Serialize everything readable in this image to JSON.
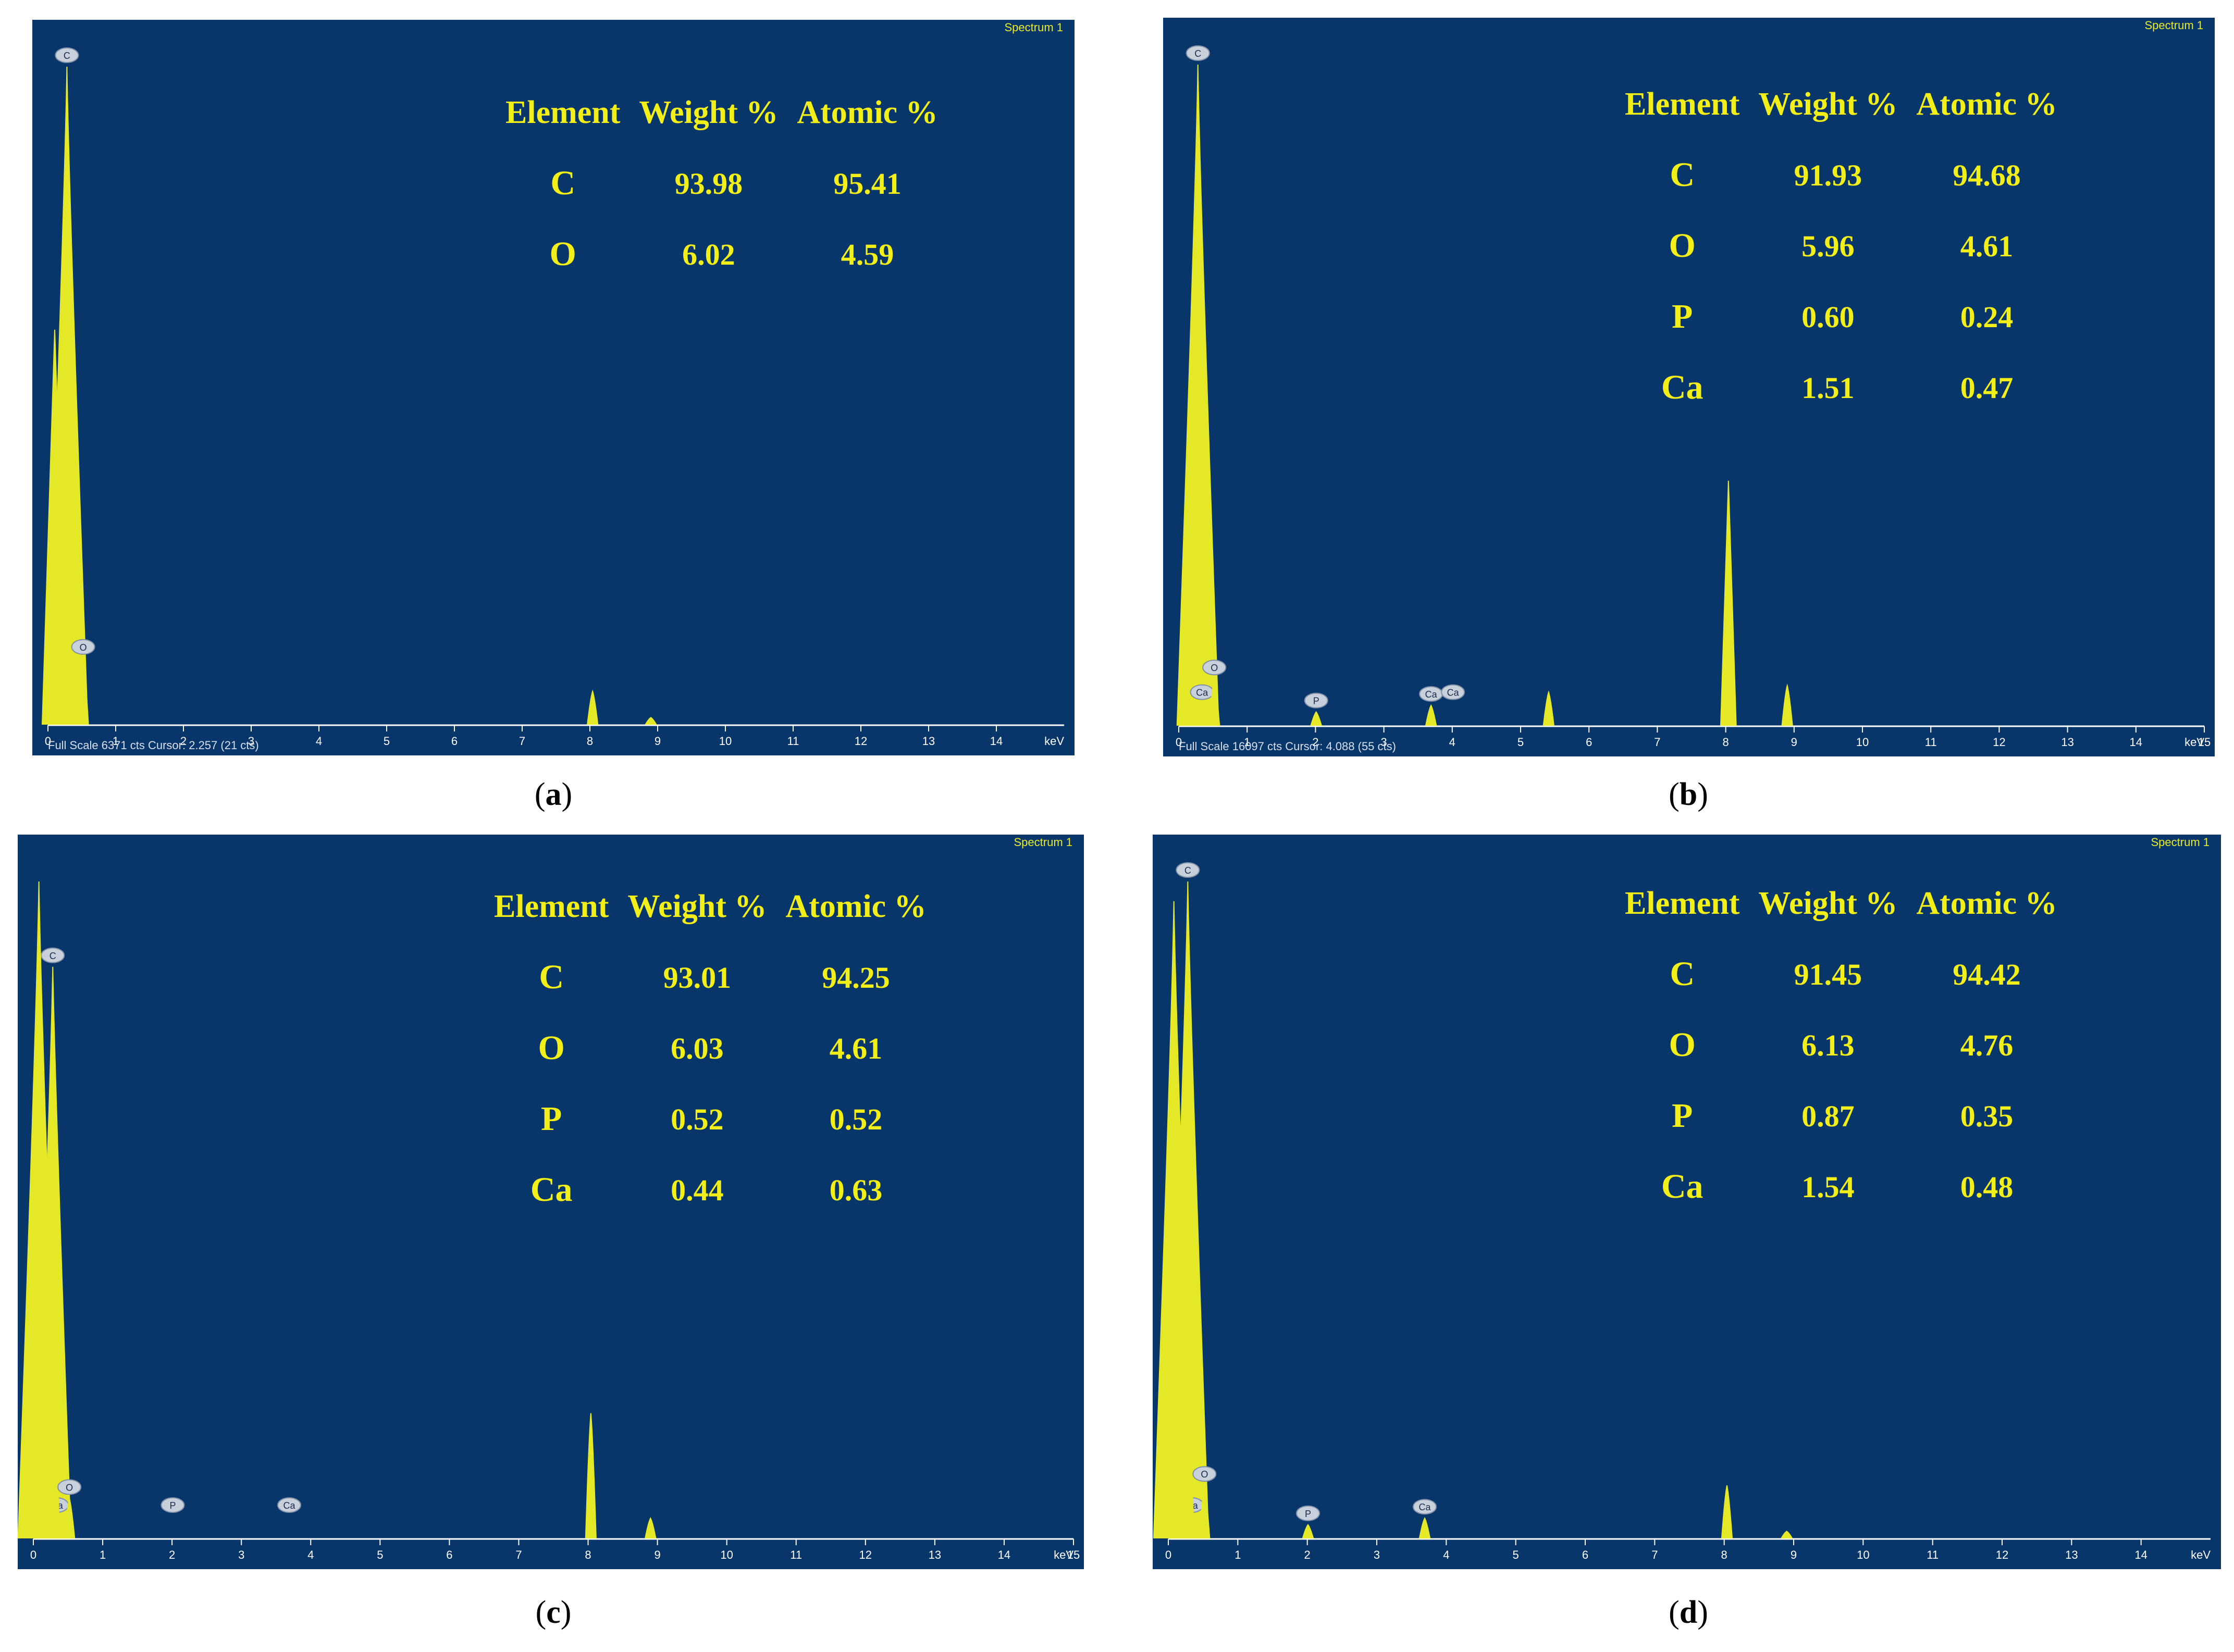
{
  "colors": {
    "plot_bg": "#08356a",
    "text": "#f2ee17",
    "spectrum": "#e4e826",
    "axis": "#ffffff"
  },
  "chart_data": [
    {
      "id": "a",
      "type": "table",
      "caption": "a",
      "spectrum_label": "Spectrum 1",
      "status_text": "Full Scale 6371 cts Cursor: 2.257  (21 cts)",
      "x_unit": "keV",
      "xlim": [
        0,
        15
      ],
      "x_ticks": [
        0,
        1,
        2,
        3,
        4,
        5,
        6,
        7,
        8,
        9,
        10,
        11,
        12,
        13,
        14
      ],
      "columns": [
        "Element",
        "Weight %",
        "Atomic %"
      ],
      "rows": [
        [
          "C",
          "93.98",
          "95.41"
        ],
        [
          "O",
          "6.02",
          "4.59"
        ]
      ],
      "peaks": [
        {
          "label": "C",
          "energy": 0.28,
          "height": 1.0
        },
        {
          "label": "",
          "energy": 0.1,
          "height": 0.6
        },
        {
          "label": "O",
          "energy": 0.52,
          "height": 0.1
        },
        {
          "label": "",
          "energy": 8.04,
          "height": 0.05
        },
        {
          "label": "",
          "energy": 8.9,
          "height": 0.01
        }
      ]
    },
    {
      "id": "b",
      "type": "table",
      "caption": "b",
      "spectrum_label": "Spectrum 1",
      "status_text": "Full Scale 16097 cts Cursor: 4.088  (55 cts)",
      "x_unit": "keV",
      "xlim": [
        0,
        15
      ],
      "x_ticks": [
        0,
        1,
        2,
        3,
        4,
        5,
        6,
        7,
        8,
        9,
        10,
        11,
        12,
        13,
        14,
        15
      ],
      "columns": [
        "Element",
        "Weight %",
        "Atomic %"
      ],
      "rows": [
        [
          "C",
          "91.93",
          "94.68"
        ],
        [
          "O",
          "5.96",
          "4.61"
        ],
        [
          "P",
          "0.60",
          "0.24"
        ],
        [
          "Ca",
          "1.51",
          "0.47"
        ]
      ],
      "peaks": [
        {
          "label": "C",
          "energy": 0.28,
          "height": 1.0
        },
        {
          "label": "Ca",
          "energy": 0.34,
          "height": 0.0
        },
        {
          "label": "",
          "energy": 0.08,
          "height": 0.27
        },
        {
          "label": "O",
          "energy": 0.52,
          "height": 0.07
        },
        {
          "label": "P",
          "energy": 2.01,
          "height": 0.02
        },
        {
          "label": "Ca",
          "energy": 3.69,
          "height": 0.03
        },
        {
          "label": "Ca",
          "energy": 4.01,
          "height": 0.0
        },
        {
          "label": "",
          "energy": 5.41,
          "height": 0.05
        },
        {
          "label": "",
          "energy": 8.04,
          "height": 0.37
        },
        {
          "label": "",
          "energy": 8.9,
          "height": 0.06
        }
      ]
    },
    {
      "id": "c",
      "type": "table",
      "caption": "c",
      "spectrum_label": "Spectrum 1",
      "status_text": "",
      "x_unit": "keV",
      "xlim": [
        0,
        15
      ],
      "x_ticks": [
        0,
        1,
        2,
        3,
        4,
        5,
        6,
        7,
        8,
        9,
        10,
        11,
        12,
        13,
        14,
        15
      ],
      "columns": [
        "Element",
        "Weight %",
        "Atomic %"
      ],
      "rows": [
        [
          "C",
          "93.01",
          "94.25"
        ],
        [
          "O",
          "6.03",
          "4.61"
        ],
        [
          "P",
          "0.52",
          "0.52"
        ],
        [
          "Ca",
          "0.44",
          "0.63"
        ]
      ],
      "peaks": [
        {
          "label": "C",
          "energy": 0.28,
          "height": 0.87
        },
        {
          "label": "Ca",
          "energy": 0.34,
          "height": 0.0
        },
        {
          "label": "",
          "energy": 0.08,
          "height": 1.0
        },
        {
          "label": "O",
          "energy": 0.52,
          "height": 0.06
        },
        {
          "label": "P",
          "energy": 2.01,
          "height": 0.0
        },
        {
          "label": "Ca",
          "energy": 3.69,
          "height": 0.0
        },
        {
          "label": "",
          "energy": 8.04,
          "height": 0.19
        },
        {
          "label": "",
          "energy": 8.9,
          "height": 0.03
        }
      ]
    },
    {
      "id": "d",
      "type": "table",
      "caption": "d",
      "spectrum_label": "Spectrum 1",
      "status_text": "",
      "x_unit": "keV",
      "xlim": [
        0,
        15
      ],
      "x_ticks": [
        0,
        1,
        2,
        3,
        4,
        5,
        6,
        7,
        8,
        9,
        10,
        11,
        12,
        13,
        14
      ],
      "columns": [
        "Element",
        "Weight %",
        "Atomic %"
      ],
      "rows": [
        [
          "C",
          "91.45",
          "94.42"
        ],
        [
          "O",
          "6.13",
          "4.76"
        ],
        [
          "P",
          "0.87",
          "0.35"
        ],
        [
          "Ca",
          "1.54",
          "0.48"
        ]
      ],
      "peaks": [
        {
          "label": "C",
          "energy": 0.28,
          "height": 1.0
        },
        {
          "label": "Ca",
          "energy": 0.34,
          "height": 0.0
        },
        {
          "label": "",
          "energy": 0.08,
          "height": 0.97
        },
        {
          "label": "O",
          "energy": 0.52,
          "height": 0.08
        },
        {
          "label": "P",
          "energy": 2.01,
          "height": 0.02
        },
        {
          "label": "Ca",
          "energy": 3.69,
          "height": 0.03
        },
        {
          "label": "",
          "energy": 8.04,
          "height": 0.08
        },
        {
          "label": "",
          "energy": 8.9,
          "height": 0.01
        }
      ]
    }
  ]
}
